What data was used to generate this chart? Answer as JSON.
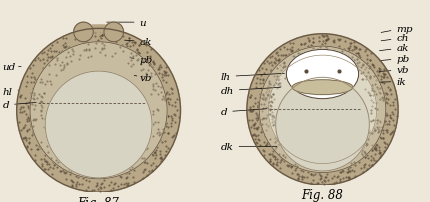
{
  "fig87_right_labels": [
    "u",
    "ak",
    "pb",
    "vb"
  ],
  "fig87_left_labels": [
    "ud",
    "hl",
    "d"
  ],
  "fig88_right_labels": [
    "mp",
    "ch",
    "ak",
    "pb",
    "vb",
    "ik"
  ],
  "fig88_left_labels": [
    "lh",
    "dh",
    "d",
    "dk"
  ],
  "label_fontsize": 7.5,
  "bg_color": "#ede8da",
  "outer_dark": "#6a5a45",
  "outer_mid": "#b8a888",
  "outer_light": "#e8e0cc",
  "yolk_color": "#d8d4c4",
  "stipple_color": "#5a4a38",
  "cell_color": "#c8bca0"
}
